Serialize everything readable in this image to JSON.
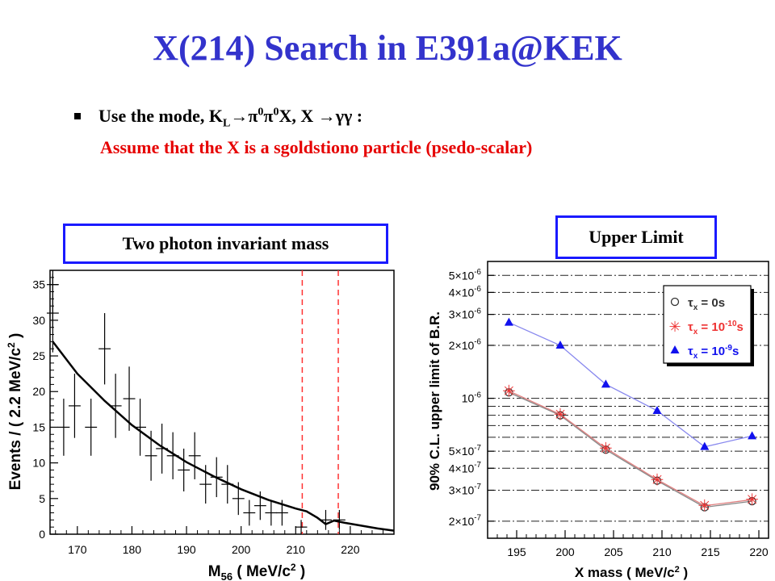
{
  "slide": {
    "title": "X(214) Search in E391a@KEK",
    "bullet": {
      "prefix": "Use the mode, K",
      "k_sub": "L",
      "arrow1": "→π",
      "sup1": "0",
      "pi2": "π",
      "sup2": "0",
      "rest": "X, X →γγ :"
    },
    "note": "Assume that the X is a sgoldstiono particle (psedo-scalar)",
    "left_box_label": "Two photon invariant mass",
    "right_box_label": "Upper Limit"
  },
  "chart_data": [
    {
      "type": "scatter",
      "title": "",
      "xlabel": "M56 ( MeV/c2 )",
      "ylabel": "Events / ( 2.2 MeV/c2 )",
      "xlim": [
        165,
        228
      ],
      "ylim": [
        0,
        37
      ],
      "xticks": [
        "170",
        "180",
        "190",
        "200",
        "210",
        "220"
      ],
      "yticks": [
        "0",
        "5",
        "10",
        "15",
        "20",
        "25",
        "30",
        "35"
      ],
      "points": [
        {
          "x": 165.5,
          "y": 35,
          "err": 6
        },
        {
          "x": 165.5,
          "y": 31,
          "err": 5.5
        },
        {
          "x": 167.5,
          "y": 15,
          "err": 4
        },
        {
          "x": 169.5,
          "y": 18,
          "err": 4.5
        },
        {
          "x": 172.5,
          "y": 15,
          "err": 4
        },
        {
          "x": 175.0,
          "y": 26,
          "err": 5
        },
        {
          "x": 177.0,
          "y": 18,
          "err": 4.5
        },
        {
          "x": 179.5,
          "y": 19,
          "err": 4.5
        },
        {
          "x": 181.5,
          "y": 15,
          "err": 4
        },
        {
          "x": 183.5,
          "y": 11,
          "err": 3.5
        },
        {
          "x": 185.5,
          "y": 12,
          "err": 3.5
        },
        {
          "x": 187.5,
          "y": 11,
          "err": 3.3
        },
        {
          "x": 189.5,
          "y": 9,
          "err": 3
        },
        {
          "x": 191.5,
          "y": 11,
          "err": 3.3
        },
        {
          "x": 193.5,
          "y": 7,
          "err": 2.7
        },
        {
          "x": 195.5,
          "y": 8,
          "err": 2.8
        },
        {
          "x": 197.5,
          "y": 7,
          "err": 2.7
        },
        {
          "x": 199.5,
          "y": 5,
          "err": 2.3
        },
        {
          "x": 201.5,
          "y": 3,
          "err": 1.8
        },
        {
          "x": 203.5,
          "y": 4,
          "err": 2
        },
        {
          "x": 205.5,
          "y": 3,
          "err": 1.8
        },
        {
          "x": 207.5,
          "y": 3,
          "err": 1.8
        },
        {
          "x": 211.0,
          "y": 1,
          "err": 1
        },
        {
          "x": 215.5,
          "y": 2,
          "err": 1.4
        },
        {
          "x": 218.0,
          "y": 2,
          "err": 1.4
        }
      ],
      "fit_curve": [
        [
          165.5,
          27
        ],
        [
          170,
          22.5
        ],
        [
          175,
          18.7
        ],
        [
          180,
          15.3
        ],
        [
          185,
          12.5
        ],
        [
          190,
          10.1
        ],
        [
          195,
          8.1
        ],
        [
          200,
          6.3
        ],
        [
          205,
          4.8
        ],
        [
          210,
          3.6
        ],
        [
          212,
          3.2
        ],
        [
          214,
          2.3
        ],
        [
          215.5,
          1.4
        ],
        [
          217,
          1.9
        ],
        [
          219,
          1.6
        ],
        [
          222,
          1.2
        ],
        [
          225,
          0.8
        ],
        [
          228,
          0.5
        ]
      ],
      "signal_window": [
        211.2,
        217.8
      ],
      "colors": {
        "data": "#000000",
        "fit": "#000000",
        "window": "#ff3333"
      }
    },
    {
      "type": "line",
      "title": "",
      "xlabel": "X mass ( MeV/c2 )",
      "ylabel": "90% C.L. upper limit of B.R.",
      "xlim": [
        192,
        221
      ],
      "ylim": [
        1.6e-07,
        6e-06
      ],
      "log_y": true,
      "xticks": [
        "195",
        "200",
        "205",
        "210",
        "215",
        "220"
      ],
      "grid": true,
      "legend_position": "top-right",
      "series": [
        {
          "name": "τx = 0s",
          "color": "#333333",
          "marker": "open-circle",
          "x": [
            194.2,
            199.5,
            204.2,
            209.5,
            214.4,
            219.3
          ],
          "y": [
            1.08e-06,
            8e-07,
            5.1e-07,
            3.4e-07,
            2.4e-07,
            2.6e-07
          ]
        },
        {
          "name": "τx = 10-10s",
          "color": "#ee3333",
          "marker": "star",
          "x": [
            194.2,
            199.5,
            204.2,
            209.5,
            214.4,
            219.3
          ],
          "y": [
            1.1e-06,
            8.1e-07,
            5.2e-07,
            3.45e-07,
            2.45e-07,
            2.65e-07
          ]
        },
        {
          "name": "τx = 10-9s",
          "color": "#1111ee",
          "marker": "triangle",
          "x": [
            194.2,
            199.5,
            204.2,
            209.5,
            214.4,
            219.3
          ],
          "y": [
            2.7e-06,
            2e-06,
            1.2e-06,
            8.5e-07,
            5.3e-07,
            6.1e-07
          ]
        }
      ],
      "yticks": [
        "2×10-7",
        "3×10-7",
        "4×10-7",
        "5×10-7",
        "10-6",
        "2×10-6",
        "3×10-6",
        "4×10-6",
        "5×10-6"
      ]
    }
  ]
}
